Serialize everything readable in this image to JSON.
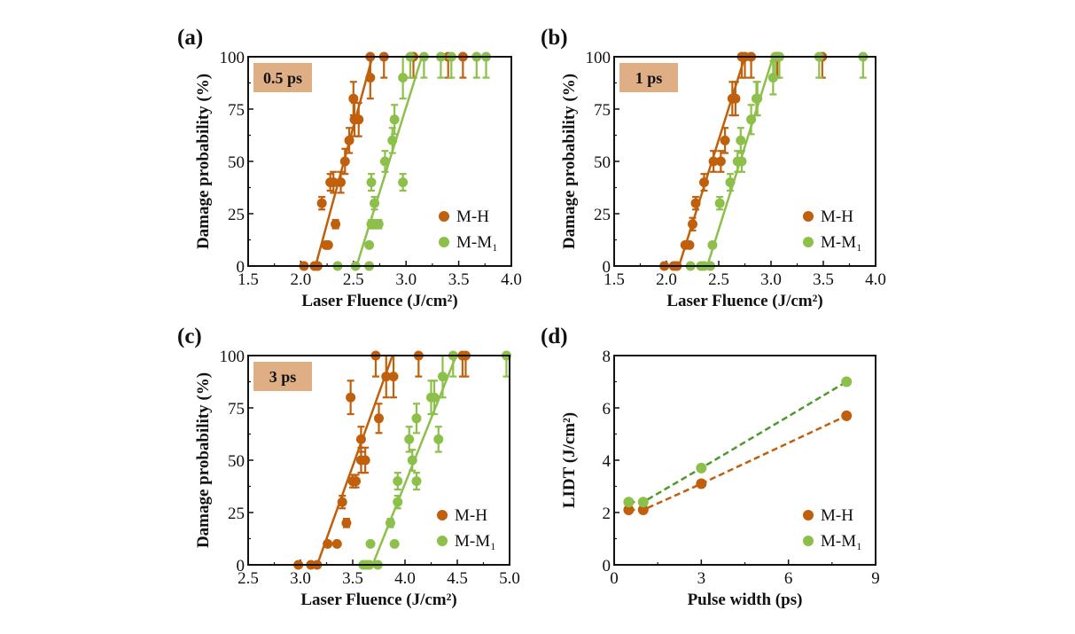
{
  "figure": {
    "colors": {
      "mh": "#c0600c",
      "mm1": "#8dc04a",
      "mm1_dash": "#4d9a2a",
      "badge": "#dfae85"
    }
  },
  "chart_data": [
    {
      "id": "a",
      "type": "scatter",
      "panel_label": "(a)",
      "badge": "0.5 ps",
      "xlabel": "Laser Fluence (J/cm²)",
      "ylabel": "Damage probability (%)",
      "xlim": [
        1.5,
        4.0
      ],
      "ylim": [
        0,
        100
      ],
      "xticks": [
        "1.5",
        "2.0",
        "2.5",
        "3.0",
        "3.5",
        "4.0"
      ],
      "yticks": [
        "0",
        "25",
        "50",
        "75",
        "100"
      ],
      "legend": {
        "position": "bottom-right",
        "entries": [
          "M-H",
          "M-M₁"
        ]
      },
      "series": [
        {
          "name": "M-H",
          "points": [
            [
              2.03,
              0
            ],
            [
              2.13,
              0
            ],
            [
              2.16,
              0
            ],
            [
              2.2,
              30
            ],
            [
              2.24,
              10
            ],
            [
              2.26,
              10
            ],
            [
              2.28,
              40
            ],
            [
              2.33,
              20
            ],
            [
              2.31,
              40
            ],
            [
              2.38,
              40
            ],
            [
              2.42,
              50
            ],
            [
              2.46,
              60
            ],
            [
              2.5,
              80
            ],
            [
              2.51,
              70
            ],
            [
              2.55,
              70
            ],
            [
              2.66,
              90
            ],
            [
              2.66,
              100
            ],
            [
              2.79,
              100
            ],
            [
              3.07,
              100
            ],
            [
              3.4,
              100
            ],
            [
              3.54,
              100
            ]
          ],
          "errors": [
            0,
            0,
            0,
            3,
            0,
            0,
            4,
            2,
            5,
            5,
            6,
            6,
            8,
            8,
            8,
            10,
            10,
            10,
            10,
            10,
            10
          ],
          "fit": [
            [
              2.14,
              0
            ],
            [
              2.68,
              100
            ]
          ]
        },
        {
          "name": "M-M₁",
          "points": [
            [
              2.35,
              0
            ],
            [
              2.52,
              0
            ],
            [
              2.65,
              0
            ],
            [
              2.65,
              10
            ],
            [
              2.67,
              20
            ],
            [
              2.7,
              20
            ],
            [
              2.74,
              20
            ],
            [
              2.7,
              30
            ],
            [
              2.67,
              40
            ],
            [
              2.97,
              40
            ],
            [
              2.8,
              50
            ],
            [
              2.87,
              60
            ],
            [
              2.89,
              70
            ],
            [
              2.97,
              90
            ],
            [
              3.04,
              100
            ],
            [
              3.17,
              100
            ],
            [
              3.33,
              100
            ],
            [
              3.43,
              100
            ],
            [
              3.67,
              100
            ],
            [
              3.76,
              100
            ]
          ],
          "errors": [
            0,
            0,
            0,
            0,
            2,
            2,
            2,
            3,
            4,
            4,
            5,
            6,
            7,
            10,
            10,
            10,
            10,
            10,
            10,
            10
          ],
          "fit": [
            [
              2.53,
              0
            ],
            [
              3.15,
              100
            ]
          ]
        }
      ]
    },
    {
      "id": "b",
      "type": "scatter",
      "panel_label": "(b)",
      "badge": "1 ps",
      "xlabel": "Laser Fluence (J/cm²)",
      "ylabel": "Damage probability (%)",
      "xlim": [
        1.5,
        4.0
      ],
      "ylim": [
        0,
        100
      ],
      "xticks": [
        "1.5",
        "2.0",
        "2.5",
        "3.0",
        "3.5",
        "4.0"
      ],
      "yticks": [
        "0",
        "25",
        "50",
        "75",
        "100"
      ],
      "legend": {
        "position": "bottom-right",
        "entries": [
          "M-H",
          "M-M₁"
        ]
      },
      "series": [
        {
          "name": "M-H",
          "points": [
            [
              1.98,
              0
            ],
            [
              2.07,
              0
            ],
            [
              2.1,
              0
            ],
            [
              2.18,
              10
            ],
            [
              2.22,
              10
            ],
            [
              2.25,
              20
            ],
            [
              2.28,
              30
            ],
            [
              2.36,
              40
            ],
            [
              2.45,
              50
            ],
            [
              2.52,
              50
            ],
            [
              2.56,
              60
            ],
            [
              2.63,
              80
            ],
            [
              2.66,
              80
            ],
            [
              2.72,
              100
            ],
            [
              2.75,
              100
            ],
            [
              2.81,
              100
            ],
            [
              3.06,
              100
            ],
            [
              3.49,
              100
            ]
          ],
          "errors": [
            0,
            0,
            0,
            0,
            0,
            3,
            3,
            4,
            5,
            5,
            6,
            8,
            8,
            10,
            10,
            10,
            10,
            10
          ],
          "fit": [
            [
              2.12,
              0
            ],
            [
              2.75,
              100
            ]
          ]
        },
        {
          "name": "M-M₁",
          "points": [
            [
              2.23,
              0
            ],
            [
              2.33,
              0
            ],
            [
              2.36,
              0
            ],
            [
              2.42,
              0
            ],
            [
              2.44,
              10
            ],
            [
              2.51,
              30
            ],
            [
              2.61,
              40
            ],
            [
              2.68,
              50
            ],
            [
              2.72,
              50
            ],
            [
              2.71,
              60
            ],
            [
              2.81,
              70
            ],
            [
              2.86,
              80
            ],
            [
              2.87,
              80
            ],
            [
              3.02,
              90
            ],
            [
              3.04,
              100
            ],
            [
              3.08,
              100
            ],
            [
              3.46,
              100
            ],
            [
              3.88,
              100
            ]
          ],
          "errors": [
            0,
            0,
            0,
            0,
            0,
            3,
            4,
            5,
            5,
            6,
            7,
            8,
            8,
            8,
            10,
            10,
            10,
            10
          ],
          "fit": [
            [
              2.39,
              0
            ],
            [
              3.02,
              100
            ]
          ]
        }
      ]
    },
    {
      "id": "c",
      "type": "scatter",
      "panel_label": "(c)",
      "badge": "3 ps",
      "xlabel": "Laser Fluence (J/cm²)",
      "ylabel": "Damage probability (%)",
      "xlim": [
        2.5,
        5.0
      ],
      "ylim": [
        0,
        100
      ],
      "xticks": [
        "2.5",
        "3.0",
        "3.5",
        "4.0",
        "4.5",
        "5.0"
      ],
      "yticks": [
        "0",
        "25",
        "50",
        "75",
        "100"
      ],
      "legend": {
        "position": "bottom-right",
        "entries": [
          "M-H",
          "M-M₁"
        ]
      },
      "series": [
        {
          "name": "M-H",
          "points": [
            [
              2.98,
              0
            ],
            [
              3.1,
              0
            ],
            [
              3.16,
              0
            ],
            [
              3.26,
              10
            ],
            [
              3.35,
              10
            ],
            [
              3.4,
              30
            ],
            [
              3.44,
              20
            ],
            [
              3.5,
              40
            ],
            [
              3.53,
              40
            ],
            [
              3.48,
              80
            ],
            [
              3.58,
              60
            ],
            [
              3.58,
              50
            ],
            [
              3.62,
              50
            ],
            [
              3.75,
              70
            ],
            [
              3.72,
              100
            ],
            [
              3.82,
              90
            ],
            [
              3.89,
              90
            ],
            [
              4.13,
              100
            ],
            [
              4.55,
              100
            ],
            [
              4.58,
              100
            ]
          ],
          "errors": [
            0,
            0,
            0,
            0,
            0,
            3,
            2,
            3,
            3,
            8,
            6,
            6,
            6,
            7,
            10,
            10,
            10,
            10,
            10,
            10
          ],
          "fit": [
            [
              3.16,
              0
            ],
            [
              3.88,
              100
            ]
          ]
        },
        {
          "name": "M-M₁",
          "points": [
            [
              3.6,
              0
            ],
            [
              3.63,
              0
            ],
            [
              3.66,
              0
            ],
            [
              3.74,
              0
            ],
            [
              3.67,
              10
            ],
            [
              3.9,
              10
            ],
            [
              3.86,
              20
            ],
            [
              3.93,
              30
            ],
            [
              3.93,
              40
            ],
            [
              4.11,
              40
            ],
            [
              4.07,
              50
            ],
            [
              4.04,
              60
            ],
            [
              4.11,
              70
            ],
            [
              4.32,
              60
            ],
            [
              4.25,
              80
            ],
            [
              4.28,
              80
            ],
            [
              4.36,
              90
            ],
            [
              4.46,
              100
            ],
            [
              4.97,
              100
            ]
          ],
          "errors": [
            0,
            0,
            0,
            0,
            0,
            0,
            2,
            3,
            4,
            4,
            5,
            6,
            7,
            6,
            8,
            8,
            10,
            10,
            10
          ],
          "fit": [
            [
              3.69,
              0
            ],
            [
              4.49,
              100
            ]
          ]
        }
      ]
    },
    {
      "id": "d",
      "type": "line",
      "panel_label": "(d)",
      "xlabel": "Pulse width (ps)",
      "ylabel": "LIDT (J/cm²)",
      "xlim": [
        0,
        9
      ],
      "ylim": [
        0,
        8
      ],
      "xticks": [
        "0",
        "3",
        "6",
        "9"
      ],
      "yticks": [
        "0",
        "2",
        "4",
        "6",
        "8"
      ],
      "legend": {
        "position": "bottom-right",
        "entries": [
          "M-H",
          "M-M₁"
        ]
      },
      "series": [
        {
          "name": "M-H",
          "x": [
            0.5,
            1,
            3,
            8
          ],
          "y": [
            2.1,
            2.1,
            3.1,
            5.7
          ]
        },
        {
          "name": "M-M₁",
          "x": [
            0.5,
            1,
            3,
            8
          ],
          "y": [
            2.4,
            2.4,
            3.7,
            7.0
          ]
        }
      ]
    }
  ]
}
